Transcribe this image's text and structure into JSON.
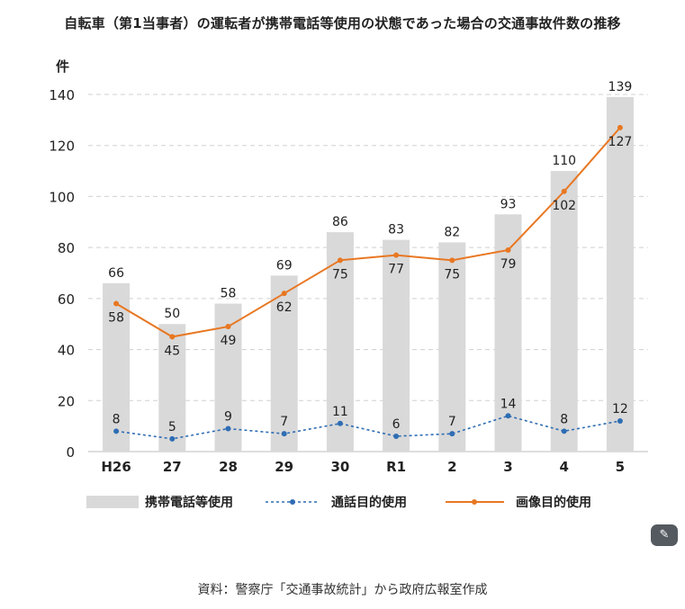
{
  "chart_data": {
    "type": "bar",
    "title": "自転車（第1当事者）の運転者が携帯電話等使用の状態であった場合の交通事故件数の推移",
    "ylabel": "件",
    "xlabel": "",
    "ylim": [
      0,
      140
    ],
    "yticks": [
      0,
      20,
      40,
      60,
      80,
      100,
      120,
      140
    ],
    "grid": true,
    "legend_position": "bottom",
    "categories": [
      "H26",
      "27",
      "28",
      "29",
      "30",
      "R1",
      "2",
      "3",
      "4",
      "5"
    ],
    "series": [
      {
        "name": "携帯電話等使用",
        "type": "bar",
        "color": "#d9d9d9",
        "values": [
          66,
          50,
          58,
          69,
          86,
          83,
          82,
          93,
          110,
          139
        ]
      },
      {
        "name": "通話目的使用",
        "type": "line",
        "line_style": "dotted",
        "color": "#2e6db4",
        "values": [
          8,
          5,
          9,
          7,
          11,
          6,
          7,
          14,
          8,
          12
        ]
      },
      {
        "name": "画像目的使用",
        "type": "line",
        "line_style": "solid",
        "color": "#e87722",
        "values": [
          58,
          45,
          49,
          62,
          75,
          77,
          75,
          79,
          102,
          127
        ]
      }
    ]
  },
  "source_note": "資料：警察庁「交通事故統計」から政府広報室作成",
  "edit_button": {
    "icon": "magic-wand-icon",
    "glyph": "✎"
  }
}
